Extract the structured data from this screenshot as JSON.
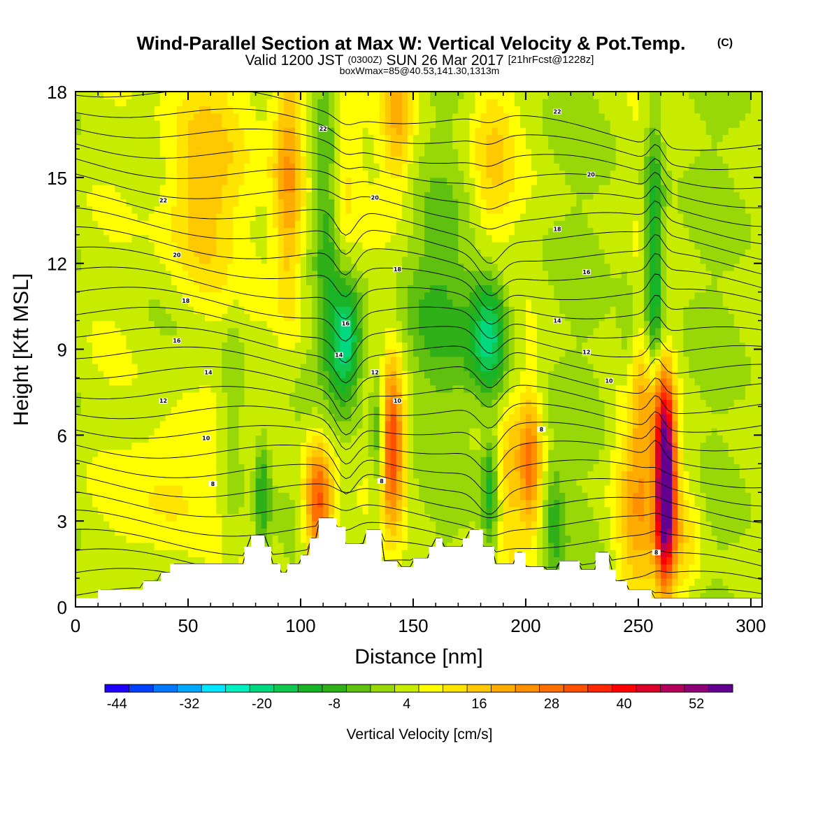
{
  "title": {
    "main": "Wind-Parallel Section at Max W: Vertical Velocity & Pot.Temp.",
    "main_suffix": "(C)",
    "valid_prefix": "Valid 1200 JST",
    "valid_zulu": "(0300Z)",
    "valid_date": "SUN 26 Mar 2017",
    "valid_fcst": "[21hrFcst@1228z]",
    "boxwmax": "boxWmax=85@40.53,141.30,1313m"
  },
  "chart_data": {
    "type": "contour",
    "xlabel": "Distance [nm]",
    "ylabel": "Height [Kft MSL]",
    "xlim": [
      0,
      305
    ],
    "ylim": [
      0,
      18
    ],
    "xticks": [
      0,
      50,
      100,
      150,
      200,
      250,
      300
    ],
    "yticks": [
      0,
      3,
      6,
      9,
      12,
      15,
      18
    ],
    "colorbar": {
      "label": "Vertical Velocity [cm/s]",
      "min": -46,
      "step": 4,
      "tick_values": [
        -44,
        -32,
        -20,
        -8,
        4,
        16,
        28,
        40,
        52
      ],
      "tick_labels": [
        "-44",
        "-32",
        "-20",
        "-8",
        "4",
        "16",
        "28",
        "40",
        "52"
      ],
      "colors": [
        "#1f00ff",
        "#0040ff",
        "#0078ff",
        "#00a8ff",
        "#00e6ff",
        "#00f0c0",
        "#00d880",
        "#10c850",
        "#18b428",
        "#30b018",
        "#60c010",
        "#98d808",
        "#c8ec00",
        "#ffff00",
        "#ffe400",
        "#ffc800",
        "#ffac00",
        "#ff9000",
        "#ff7000",
        "#ff5000",
        "#ff2800",
        "#ff0000",
        "#dc0028",
        "#b4005a",
        "#8c0078",
        "#640090"
      ]
    },
    "terrain": {
      "description": "Blocky terrain profile (Kft) masked in white",
      "x": [
        0,
        10,
        10,
        30,
        30,
        38,
        38,
        42,
        42,
        75,
        75,
        78,
        78,
        84,
        84,
        87,
        87,
        91,
        91,
        94,
        94,
        100,
        100,
        104,
        104,
        108,
        108,
        116,
        116,
        120,
        120,
        129,
        129,
        136,
        136,
        143,
        143,
        150,
        150,
        157,
        157,
        160,
        160,
        163,
        163,
        172,
        172,
        175,
        175,
        181,
        181,
        186,
        186,
        195,
        195,
        200,
        200,
        208,
        208,
        215,
        215,
        224,
        224,
        231,
        231,
        237,
        237,
        240,
        240,
        245,
        245,
        256,
        256,
        305
      ],
      "y": [
        0.3,
        0.3,
        0.6,
        0.6,
        0.9,
        0.9,
        1.2,
        1.2,
        1.5,
        1.5,
        2.1,
        2.1,
        2.5,
        2.5,
        2.1,
        2.1,
        1.5,
        1.5,
        1.2,
        1.2,
        1.5,
        1.5,
        1.8,
        1.8,
        2.4,
        2.4,
        3.1,
        3.1,
        2.8,
        2.8,
        2.2,
        2.2,
        2.7,
        2.7,
        1.6,
        1.6,
        1.4,
        1.4,
        1.7,
        1.7,
        2.1,
        2.1,
        2.4,
        2.4,
        2.1,
        2.1,
        2.4,
        2.4,
        2.7,
        2.7,
        2.1,
        2.1,
        1.5,
        1.5,
        1.9,
        1.9,
        1.4,
        1.4,
        1.3,
        1.3,
        1.6,
        1.6,
        1.3,
        1.3,
        1.9,
        1.9,
        1.3,
        1.3,
        0.9,
        0.9,
        0.6,
        0.6,
        0.3,
        0.3
      ]
    },
    "vertical_velocity_features": [
      {
        "x": 262,
        "y": 4.2,
        "sx": 3.0,
        "sy": 2.2,
        "amp": 60
      },
      {
        "x": 258,
        "y": 6.8,
        "sx": 5.0,
        "sy": 1.5,
        "amp": 14
      },
      {
        "x": 250,
        "y": 4.2,
        "sx": 7.0,
        "sy": 3.5,
        "amp": 16
      },
      {
        "x": 270,
        "y": 2.5,
        "sx": 6.0,
        "sy": 1.8,
        "amp": 10
      },
      {
        "x": 140,
        "y": 5.7,
        "sx": 4.0,
        "sy": 2.0,
        "amp": 32
      },
      {
        "x": 108,
        "y": 3.6,
        "sx": 4.5,
        "sy": 1.6,
        "amp": 30
      },
      {
        "x": 202,
        "y": 5.0,
        "sx": 3.5,
        "sy": 1.8,
        "amp": 22
      },
      {
        "x": 193,
        "y": 4.4,
        "sx": 3.5,
        "sy": 2.0,
        "amp": 10
      },
      {
        "x": 95,
        "y": 15.0,
        "sx": 5.0,
        "sy": 3.5,
        "amp": 20
      },
      {
        "x": 55,
        "y": 14.8,
        "sx": 12.0,
        "sy": 3.0,
        "amp": 16
      },
      {
        "x": 45,
        "y": 4.4,
        "sx": 14.0,
        "sy": 2.0,
        "amp": 10
      },
      {
        "x": 143,
        "y": 17.0,
        "sx": 5.0,
        "sy": 1.8,
        "amp": 14
      },
      {
        "x": 185,
        "y": 15.5,
        "sx": 7.0,
        "sy": 2.5,
        "amp": 10
      },
      {
        "x": 118,
        "y": 15.5,
        "sx": 6.0,
        "sy": 2.5,
        "amp": 8
      },
      {
        "x": 120,
        "y": 9.3,
        "sx": 5.0,
        "sy": 1.4,
        "amp": -26
      },
      {
        "x": 184,
        "y": 9.6,
        "sx": 6.0,
        "sy": 1.5,
        "amp": -24
      },
      {
        "x": 257,
        "y": 11.5,
        "sx": 3.0,
        "sy": 4.0,
        "amp": -20
      },
      {
        "x": 112,
        "y": 14.0,
        "sx": 3.5,
        "sy": 3.5,
        "amp": -12
      },
      {
        "x": 135,
        "y": 6.0,
        "sx": 2.5,
        "sy": 2.0,
        "amp": -18
      },
      {
        "x": 184,
        "y": 4.0,
        "sx": 2.5,
        "sy": 1.5,
        "amp": -14
      },
      {
        "x": 83,
        "y": 4.0,
        "sx": 2.5,
        "sy": 1.5,
        "amp": -14
      },
      {
        "x": 213,
        "y": 3.0,
        "sx": 3.0,
        "sy": 1.5,
        "amp": -10
      },
      {
        "x": 245,
        "y": 9.0,
        "sx": 3.0,
        "sy": 2.0,
        "amp": -8
      },
      {
        "x": 70,
        "y": 6.5,
        "sx": 4.0,
        "sy": 3.0,
        "amp": -8
      },
      {
        "x": 160,
        "y": 10.5,
        "sx": 12.0,
        "sy": 2.5,
        "amp": -8
      }
    ],
    "contour_labels": [
      {
        "x": 110,
        "y": 16.7,
        "text": "22"
      },
      {
        "x": 214,
        "y": 17.3,
        "text": "22"
      },
      {
        "x": 39,
        "y": 14.2,
        "text": "22"
      },
      {
        "x": 133,
        "y": 14.3,
        "text": "20"
      },
      {
        "x": 229,
        "y": 15.1,
        "text": "20"
      },
      {
        "x": 45,
        "y": 12.3,
        "text": "20"
      },
      {
        "x": 214,
        "y": 13.2,
        "text": "18"
      },
      {
        "x": 143,
        "y": 11.8,
        "text": "18"
      },
      {
        "x": 49,
        "y": 10.7,
        "text": "18"
      },
      {
        "x": 227,
        "y": 11.7,
        "text": "16"
      },
      {
        "x": 120,
        "y": 9.9,
        "text": "16"
      },
      {
        "x": 45,
        "y": 9.3,
        "text": "16"
      },
      {
        "x": 214,
        "y": 10.0,
        "text": "14"
      },
      {
        "x": 117,
        "y": 8.8,
        "text": "14"
      },
      {
        "x": 59,
        "y": 8.2,
        "text": "14"
      },
      {
        "x": 227,
        "y": 8.9,
        "text": "12"
      },
      {
        "x": 133,
        "y": 8.2,
        "text": "12"
      },
      {
        "x": 39,
        "y": 7.2,
        "text": "12"
      },
      {
        "x": 237,
        "y": 7.9,
        "text": "10"
      },
      {
        "x": 143,
        "y": 7.2,
        "text": "10"
      },
      {
        "x": 58,
        "y": 5.9,
        "text": "10"
      },
      {
        "x": 207,
        "y": 6.2,
        "text": "8"
      },
      {
        "x": 136,
        "y": 4.4,
        "text": "8"
      },
      {
        "x": 61,
        "y": 4.3,
        "text": "8"
      },
      {
        "x": 258,
        "y": 1.9,
        "text": "8"
      }
    ]
  }
}
